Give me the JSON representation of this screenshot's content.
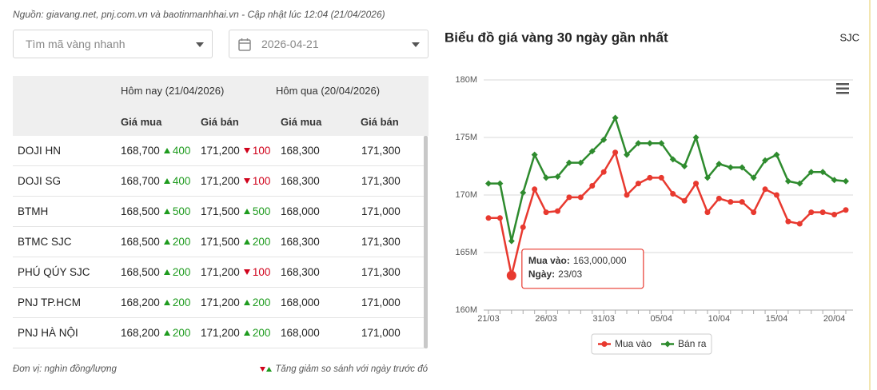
{
  "header": {
    "source": "Nguồn: giavang.net, pnj.com.vn và baotinmanhhai.vn - Cập nhật lúc 12:04 (21/04/2026)"
  },
  "filters": {
    "search_placeholder": "Tìm mã vàng nhanh",
    "date": "2026-04-21"
  },
  "table": {
    "group_headers": [
      "Hôm nay (21/04/2026)",
      "Hôm qua (20/04/2026)"
    ],
    "column_headers": [
      "Giá mua",
      "Giá bán",
      "Giá mua",
      "Giá bán"
    ],
    "rows": [
      {
        "name": "DOJI HN",
        "buy": "168,700",
        "buy_change": "400",
        "buy_dir": "up",
        "sell": "171,200",
        "sell_change": "100",
        "sell_dir": "down",
        "prev_buy": "168,300",
        "prev_sell": "171,300"
      },
      {
        "name": "DOJI SG",
        "buy": "168,700",
        "buy_change": "400",
        "buy_dir": "up",
        "sell": "171,200",
        "sell_change": "100",
        "sell_dir": "down",
        "prev_buy": "168,300",
        "prev_sell": "171,300"
      },
      {
        "name": "BTMH",
        "buy": "168,500",
        "buy_change": "500",
        "buy_dir": "up",
        "sell": "171,500",
        "sell_change": "500",
        "sell_dir": "up",
        "prev_buy": "168,000",
        "prev_sell": "171,000"
      },
      {
        "name": "BTMC SJC",
        "buy": "168,500",
        "buy_change": "200",
        "buy_dir": "up",
        "sell": "171,500",
        "sell_change": "200",
        "sell_dir": "up",
        "prev_buy": "168,300",
        "prev_sell": "171,300"
      },
      {
        "name": "PHÚ QÚY SJC",
        "buy": "168,500",
        "buy_change": "200",
        "buy_dir": "up",
        "sell": "171,200",
        "sell_change": "100",
        "sell_dir": "down",
        "prev_buy": "168,300",
        "prev_sell": "171,300"
      },
      {
        "name": "PNJ TP.HCM",
        "buy": "168,200",
        "buy_change": "200",
        "buy_dir": "up",
        "sell": "171,200",
        "sell_change": "200",
        "sell_dir": "up",
        "prev_buy": "168,000",
        "prev_sell": "171,000"
      },
      {
        "name": "PNJ HÀ NỘI",
        "buy": "168,200",
        "buy_change": "200",
        "buy_dir": "up",
        "sell": "171,200",
        "sell_change": "200",
        "sell_dir": "up",
        "prev_buy": "168,000",
        "prev_sell": "171,000"
      }
    ]
  },
  "footer": {
    "unit": "Đơn vị: nghìn đồng/lượng",
    "legend": "Tăng giảm so sánh với ngày trước đó"
  },
  "chart_data": {
    "type": "line",
    "title": "Biểu đồ giá vàng 30 ngày gần nhất",
    "subtitle": "SJC",
    "categories": [
      "21/03",
      null,
      null,
      null,
      null,
      "26/03",
      null,
      null,
      null,
      null,
      "31/03",
      null,
      null,
      null,
      null,
      "05/04",
      null,
      null,
      null,
      null,
      "10/04",
      null,
      null,
      null,
      null,
      "15/04",
      null,
      null,
      null,
      null,
      "20/04",
      null
    ],
    "series": [
      {
        "name": "Mua vào",
        "color": "#e8392f",
        "marker": "circle",
        "values": [
          168000000,
          168000000,
          163000000,
          167200000,
          170500000,
          168500000,
          168600000,
          169800000,
          169800000,
          170800000,
          172000000,
          173700000,
          170000000,
          171000000,
          171500000,
          171500000,
          170100000,
          169500000,
          171000000,
          168500000,
          169700000,
          169400000,
          169400000,
          168500000,
          170500000,
          170000000,
          167700000,
          167500000,
          168500000,
          168500000,
          168300000,
          168700000
        ]
      },
      {
        "name": "Bán ra",
        "color": "#2e8b2e",
        "marker": "diamond",
        "values": [
          171000000,
          171000000,
          166000000,
          170200000,
          173500000,
          171500000,
          171600000,
          172800000,
          172800000,
          173800000,
          174800000,
          176700000,
          173500000,
          174500000,
          174500000,
          174500000,
          173100000,
          172500000,
          175000000,
          171500000,
          172700000,
          172400000,
          172400000,
          171500000,
          173000000,
          173500000,
          171200000,
          171000000,
          172000000,
          172000000,
          171300000,
          171200000
        ]
      }
    ],
    "ylim": [
      160000000,
      180000000
    ],
    "yticks": [
      {
        "value": 160000000,
        "label": "160M"
      },
      {
        "value": 165000000,
        "label": "165M"
      },
      {
        "value": 170000000,
        "label": "170M"
      },
      {
        "value": 175000000,
        "label": "175M"
      },
      {
        "value": 180000000,
        "label": "180M"
      }
    ],
    "grid": true,
    "legend": "bottom",
    "tooltip": {
      "series_label": "Mua vào:",
      "value_label": "163,000,000",
      "date_label": "Ngày:",
      "date": "23/03",
      "series": 0,
      "index": 2
    }
  }
}
